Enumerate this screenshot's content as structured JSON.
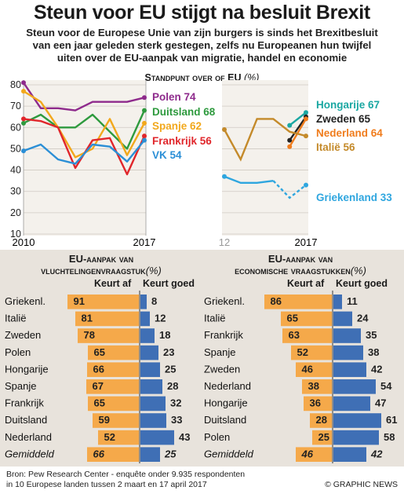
{
  "title": "Steun voor EU stijgt na besluit Brexit",
  "subtitle_lines": [
    "Steun voor de Europese Unie van zijn burgers is sinds het Brexitbesluit",
    "van een jaar geleden sterk gestegen, zelfs nu Europeanen hun twijfel",
    "uiten over de EU-aanpak van migratie, handel en economie"
  ],
  "line_chart_title": "Standpunt over of EU",
  "line_chart_unit": "(%)",
  "left_years": {
    "start": "2010",
    "end": "2017"
  },
  "right_years": {
    "start": "12",
    "end": "2017"
  },
  "bars_left": {
    "title_line1": "EU-aanpak van",
    "title_line2": "vluchtelingenvraagstuk",
    "unit": "(%)",
    "head_bad": "Keurt af",
    "head_good": "Keurt goed"
  },
  "bars_right": {
    "title_line1": "EU-aanpak van",
    "title_line2": "economische vraagstukken",
    "unit": "(%)",
    "head_bad": "Keurt af",
    "head_good": "Keurt goed"
  },
  "source_line1": "Bron: Pew Research Center - enquête onder 9.935 respondenten",
  "source_line2": "in 10 Europese landen tussen 2 maart en 17 april 2017",
  "credit": "© GRAPHIC NEWS",
  "colors": {
    "polen": "#8e2a8c",
    "duitsland": "#2e9a3e",
    "spanje": "#f2a81c",
    "frankrijk": "#e0262b",
    "vk": "#2b8fd6",
    "hongarije": "#1aa7a2",
    "zweden": "#222222",
    "nederland": "#f07c1c",
    "italie": "#c48a2a",
    "griekenland": "#2fa6df",
    "bar_bad": "#f5a94a",
    "bar_good": "#3f6fb5",
    "panel_bg": "#e8e3dc"
  },
  "chart_data": [
    {
      "type": "line",
      "title": "Standpunt over of EU (%)",
      "x": [
        2010,
        2011,
        2012,
        2013,
        2014,
        2015,
        2016,
        2017
      ],
      "ylim": [
        10,
        80
      ],
      "yticks": [
        10,
        20,
        30,
        40,
        50,
        60,
        70,
        80
      ],
      "series": [
        {
          "name": "Polen 74",
          "key": "polen",
          "values": [
            81,
            69,
            69,
            68,
            72,
            72,
            72,
            74
          ]
        },
        {
          "name": "Duitsland 68",
          "key": "duitsland",
          "values": [
            62,
            66,
            60,
            60,
            66,
            58,
            50,
            68
          ]
        },
        {
          "name": "Spanje 62",
          "key": "spanje",
          "values": [
            77,
            72,
            60,
            46,
            50,
            64,
            47,
            62
          ]
        },
        {
          "name": "Frankrijk 56",
          "key": "frankrijk",
          "values": [
            64,
            63,
            60,
            41,
            54,
            55,
            38,
            56
          ]
        },
        {
          "name": "VK 54",
          "key": "vk",
          "values": [
            49,
            52,
            45,
            43,
            52,
            51,
            44,
            54
          ]
        }
      ]
    },
    {
      "type": "line",
      "x": [
        2012,
        2013,
        2014,
        2015,
        2016,
        2017
      ],
      "ylim": [
        10,
        80
      ],
      "series": [
        {
          "name": "Hongarije 67",
          "key": "hongarije",
          "values": [
            null,
            null,
            null,
            null,
            61,
            67
          ]
        },
        {
          "name": "Zweden 65",
          "key": "zweden",
          "values": [
            null,
            null,
            null,
            null,
            54,
            65
          ]
        },
        {
          "name": "Nederland 64",
          "key": "nederland",
          "values": [
            null,
            null,
            null,
            null,
            51,
            64
          ]
        },
        {
          "name": "Italië 56",
          "key": "italie",
          "values": [
            59,
            45,
            64,
            64,
            58,
            56
          ]
        },
        {
          "name": "Griekenland 33",
          "key": "griekenland",
          "values": [
            37,
            34,
            34,
            35,
            27,
            33
          ]
        }
      ]
    },
    {
      "type": "bar",
      "title": "EU-aanpak van vluchtelingenvraagstuk (%)",
      "categories": [
        "Griekenl.",
        "Italië",
        "Zweden",
        "Polen",
        "Hongarije",
        "Spanje",
        "Frankrijk",
        "Duitsland",
        "Nederland",
        "Gemiddeld"
      ],
      "series": [
        {
          "name": "Keurt af",
          "values": [
            91,
            81,
            78,
            65,
            66,
            67,
            65,
            59,
            52,
            66
          ]
        },
        {
          "name": "Keurt goed",
          "values": [
            8,
            12,
            18,
            23,
            25,
            28,
            32,
            33,
            43,
            25
          ]
        }
      ]
    },
    {
      "type": "bar",
      "title": "EU-aanpak van economische vraagstukken (%)",
      "categories": [
        "Griekenl.",
        "Italië",
        "Frankrijk",
        "Spanje",
        "Zweden",
        "Nederland",
        "Hongarije",
        "Duitsland",
        "Polen",
        "Gemiddeld"
      ],
      "series": [
        {
          "name": "Keurt af",
          "values": [
            86,
            65,
            63,
            52,
            46,
            38,
            36,
            28,
            25,
            46
          ]
        },
        {
          "name": "Keurt goed",
          "values": [
            11,
            24,
            35,
            38,
            42,
            54,
            47,
            61,
            58,
            42
          ]
        }
      ]
    }
  ]
}
